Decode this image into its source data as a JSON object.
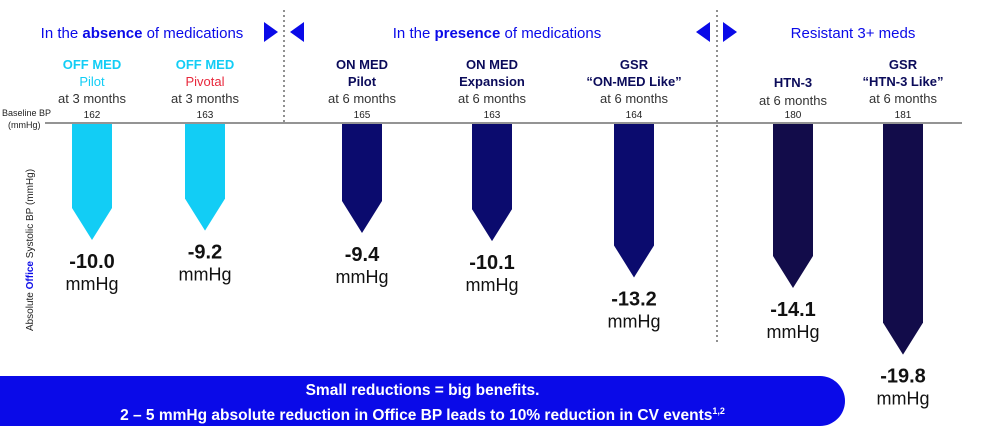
{
  "sections": [
    {
      "pre": "In the ",
      "bold": "absence",
      "post": " of medications"
    },
    {
      "pre": "In the ",
      "bold": "presence",
      "post": " of medications"
    },
    {
      "pre": "Resistant 3+ meds",
      "bold": "",
      "post": ""
    }
  ],
  "banner": {
    "line1": "Small reductions = big benefits.",
    "line2": "2 – 5 mmHg absolute reduction in Office BP leads to 10% reduction in CV events",
    "superscript": "1,2"
  },
  "chart_data": {
    "type": "bar",
    "orientation": "downward arrows",
    "baseline_label": [
      "Baseline BP",
      "(mmHg)"
    ],
    "ylabel": {
      "pre": "Absolute ",
      "highlight": "Office",
      "post": " Systolic  BP (mmHg)"
    },
    "unit": "mmHg",
    "colors": {
      "off_med": "#12cdf5",
      "on_med": "#0b0b6e",
      "resistant": "#120c4a",
      "accent": "#0a0ae8",
      "pivotal": "#e8283c"
    },
    "categories": [
      {
        "line1": "OFF MED",
        "line2": "Pilot",
        "timepoint": "at 3 months",
        "baseline": "162",
        "value": -10.0,
        "value_label": "-10.0",
        "group": "off_med"
      },
      {
        "line1": "OFF MED",
        "line2": "Pivotal",
        "timepoint": "at 3 months",
        "baseline": "163",
        "value": -9.2,
        "value_label": "-9.2",
        "group": "off_med"
      },
      {
        "line1": "ON MED",
        "line2": "Pilot",
        "timepoint": "at 6 months",
        "baseline": "165",
        "value": -9.4,
        "value_label": "-9.4",
        "group": "on_med"
      },
      {
        "line1": "ON MED",
        "line2": "Expansion",
        "timepoint": "at 6 months",
        "baseline": "163",
        "value": -10.1,
        "value_label": "-10.1",
        "group": "on_med"
      },
      {
        "line1": "GSR",
        "line2": "“ON-MED Like”",
        "timepoint": "at 6 months",
        "baseline": "164",
        "value": -13.2,
        "value_label": "-13.2",
        "group": "on_med"
      },
      {
        "line1": "",
        "line2": "HTN-3",
        "timepoint": "at 6 months",
        "baseline": "180",
        "value": -14.1,
        "value_label": "-14.1",
        "group": "resistant"
      },
      {
        "line1": "GSR",
        "line2": "“HTN-3 Like”",
        "timepoint": "at 6 months",
        "baseline": "181",
        "value": -19.8,
        "value_label": "-19.8",
        "group": "resistant"
      }
    ]
  }
}
